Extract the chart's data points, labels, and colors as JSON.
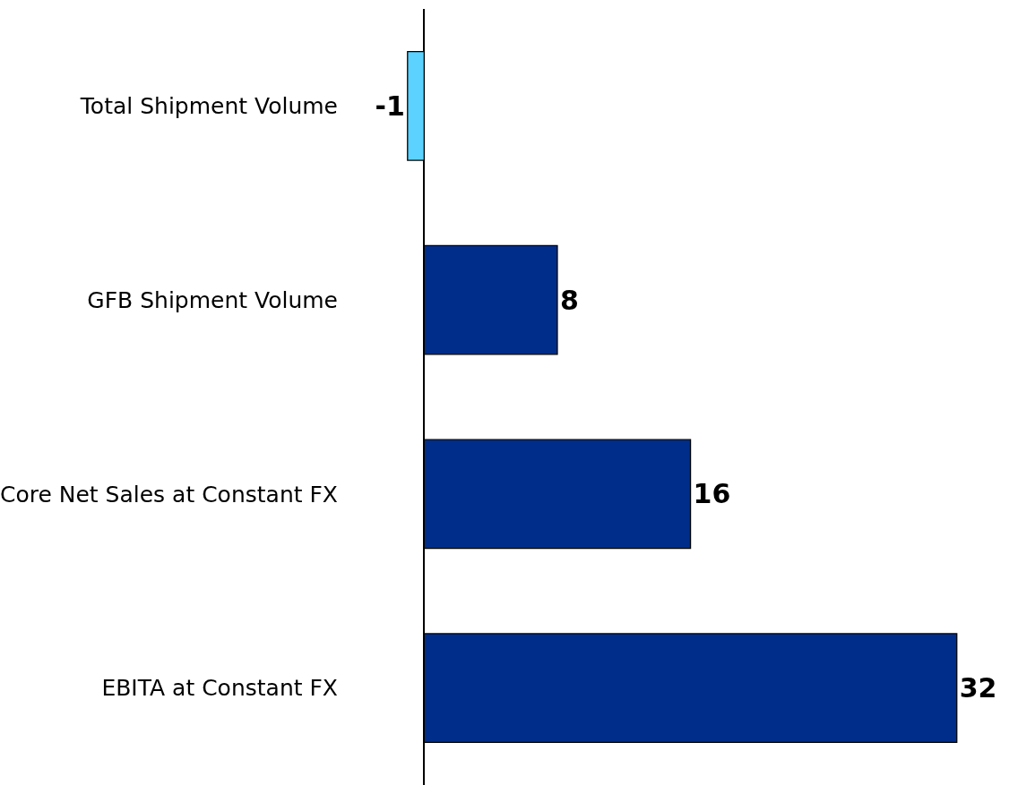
{
  "chart_data": {
    "type": "bar",
    "orientation": "horizontal",
    "categories": [
      "Total Shipment Volume",
      "GFB Shipment Volume",
      "Core Net Sales at Constant FX",
      "EBITA at Constant FX"
    ],
    "values": [
      -1,
      8,
      16,
      32
    ],
    "colors": [
      "#5bd2ff",
      "#002d8a",
      "#002d8a",
      "#002d8a"
    ],
    "data_labels": true
  }
}
